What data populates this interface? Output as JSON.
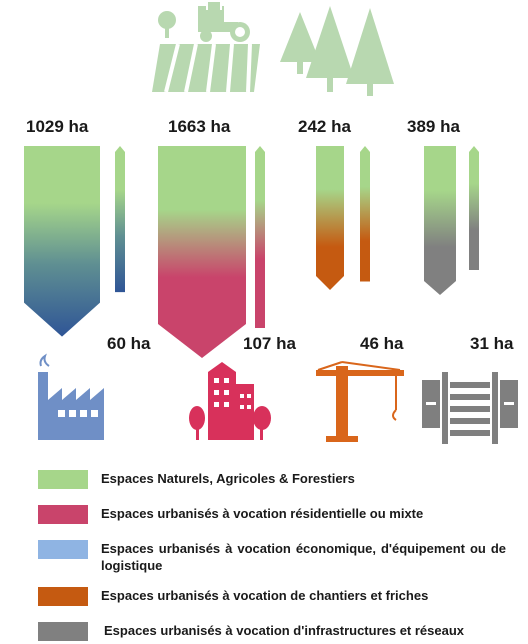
{
  "colors": {
    "naf": "#a6d68a",
    "residential": "#c9446b",
    "economic": "#8fb4e3",
    "economic_dark": "#2f5596",
    "worksite": "#c55a11",
    "infrastructure": "#808080",
    "icon_green": "#b8d8b0",
    "icon_blue": "#6f8fc6",
    "icon_pink": "#d8315b",
    "icon_orange": "#d9661b",
    "icon_gray": "#7f7f7f"
  },
  "chart_data": {
    "type": "bar",
    "title": "",
    "unit": "ha",
    "groups": [
      {
        "category": "Espaces Naturels, Agricoles & Forestiers",
        "destination": "Espaces urbanisés à vocation économique, d'équipement ou de logistique",
        "converted": 1029,
        "converted_label": "1029 ha",
        "destination_total": 60,
        "destination_label": "60 ha",
        "color": "#2f5596",
        "icon": "factory-icon"
      },
      {
        "category": "Espaces Naturels, Agricoles & Forestiers",
        "destination": "Espaces urbanisés à vocation résidentielle ou mixte",
        "converted": 1663,
        "converted_label": "1663 ha",
        "destination_total": 107,
        "destination_label": "107 ha",
        "color": "#c9446b",
        "icon": "buildings-icon"
      },
      {
        "category": "Espaces Naturels, Agricoles & Forestiers",
        "destination": "Espaces urbanisés à vocation de chantiers et friches",
        "converted": 242,
        "converted_label": "242 ha",
        "destination_total": 46,
        "destination_label": "46 ha",
        "color": "#c55a11",
        "icon": "crane-icon"
      },
      {
        "category": "Espaces Naturels, Agricoles & Forestiers",
        "destination": "Espaces urbanisés à vocation d'infrastructures et réseaux",
        "converted": 389,
        "converted_label": "389 ha",
        "destination_total": 31,
        "destination_label": "31 ha",
        "color": "#808080",
        "icon": "road-icon"
      }
    ]
  },
  "legend": [
    {
      "label": "Espaces Naturels, Agricoles & Forestiers",
      "color": "#a6d68a"
    },
    {
      "label": "Espaces urbanisés à vocation résidentielle ou mixte",
      "color": "#c9446b"
    },
    {
      "label": "Espaces urbanisés à vocation économique, d'équipement ou de logistique",
      "color": "#8fb4e3"
    },
    {
      "label": "Espaces urbanisés à vocation de chantiers et friches",
      "color": "#c55a11"
    },
    {
      "label": "Espaces urbanisés à vocation d'infrastructures et réseaux",
      "color": "#808080"
    }
  ]
}
